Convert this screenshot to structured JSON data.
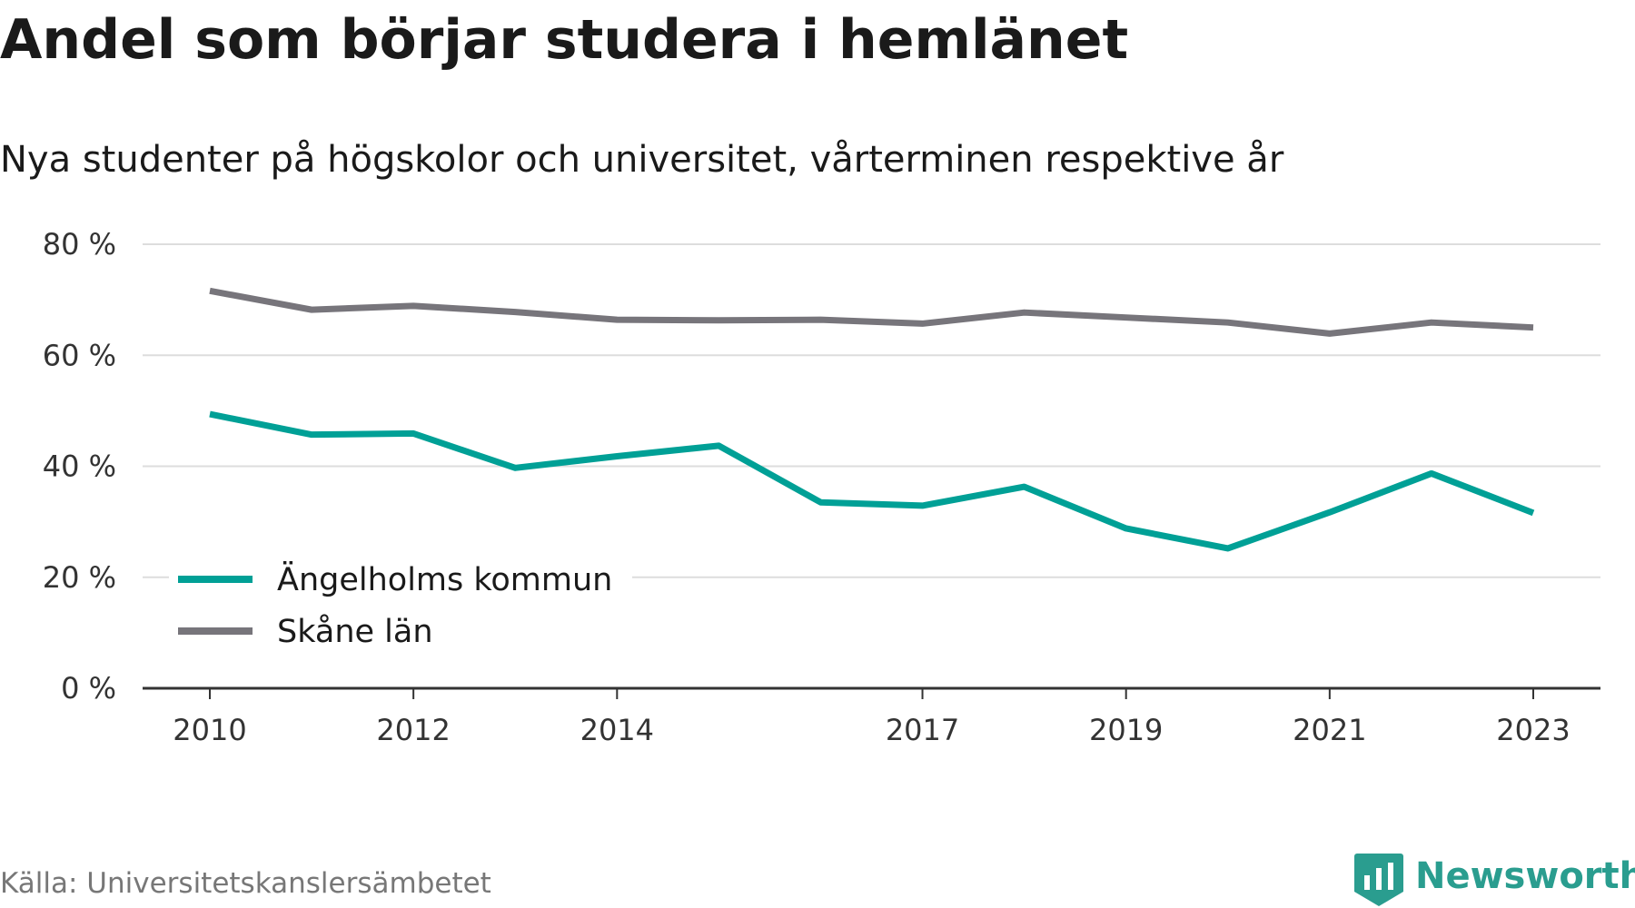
{
  "title": "Andel som börjar studera i hemlänet",
  "subtitle": "Nya studenter på högskolor och universitet, vårterminen respektive år",
  "source": "Källa: Universitetskanslersämbetet",
  "brand": {
    "name": "Newsworthy",
    "logo_icon": "bar-chart-badge-icon",
    "color": "#2a9d8f"
  },
  "chart_data": {
    "type": "line",
    "x": [
      2010,
      2011,
      2012,
      2013,
      2014,
      2015,
      2016,
      2017,
      2018,
      2019,
      2020,
      2021,
      2022,
      2023
    ],
    "xticks": [
      "2010",
      "2012",
      "2014",
      "2017",
      "2019",
      "2021",
      "2023"
    ],
    "yticks": [
      "0 %",
      "20 %",
      "40 %",
      "60 %",
      "80 %"
    ],
    "ylim": [
      0,
      80
    ],
    "grid": true,
    "legend_position": "bottom-left",
    "series": [
      {
        "name": "Ängelholms kommun",
        "color": "#00a096",
        "values": [
          49.4,
          45.7,
          45.9,
          39.7,
          41.8,
          43.7,
          33.5,
          32.9,
          36.3,
          28.8,
          25.2,
          31.7,
          38.7,
          31.6
        ]
      },
      {
        "name": "Skåne län",
        "color": "#77757b",
        "values": [
          71.6,
          68.2,
          68.9,
          67.8,
          66.4,
          66.3,
          66.4,
          65.7,
          67.7,
          66.8,
          65.9,
          63.9,
          65.9,
          65.0
        ]
      }
    ]
  }
}
